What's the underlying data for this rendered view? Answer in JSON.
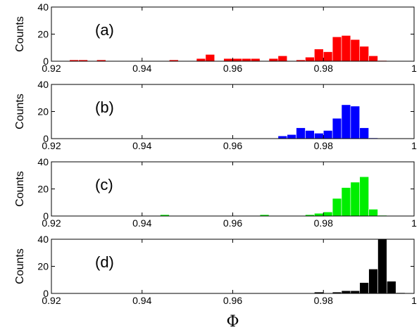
{
  "chart_data": [
    {
      "type": "bar",
      "panel_label": "(a)",
      "color": "#ff0000",
      "ylabel": "Counts",
      "xlim": [
        0.92,
        1.0
      ],
      "ylim": [
        0,
        40
      ],
      "xticks": [
        "0.92",
        "0.94",
        "0.96",
        "0.98",
        "1"
      ],
      "yticks": [
        "0",
        "20",
        "40"
      ],
      "bin_width": 0.002,
      "bin_centers": [
        0.925,
        0.927,
        0.931,
        0.947,
        0.953,
        0.955,
        0.959,
        0.961,
        0.963,
        0.965,
        0.969,
        0.971,
        0.975,
        0.977,
        0.979,
        0.981,
        0.983,
        0.985,
        0.987,
        0.989,
        0.991,
        0.993
      ],
      "counts": [
        1,
        1,
        1,
        1,
        2,
        5,
        2,
        2,
        2,
        2,
        2,
        4,
        1,
        3,
        9,
        7,
        18,
        19,
        16,
        11,
        4,
        0
      ]
    },
    {
      "type": "bar",
      "panel_label": "(b)",
      "color": "#0000ff",
      "ylabel": "Counts",
      "xlim": [
        0.92,
        1.0
      ],
      "ylim": [
        0,
        40
      ],
      "xticks": [
        "0.92",
        "0.94",
        "0.96",
        "0.98",
        "1"
      ],
      "yticks": [
        "0",
        "20",
        "40"
      ],
      "bin_width": 0.002,
      "bin_centers": [
        0.971,
        0.973,
        0.975,
        0.977,
        0.979,
        0.981,
        0.983,
        0.985,
        0.987,
        0.989,
        0.991
      ],
      "counts": [
        2,
        3,
        8,
        6,
        4,
        6,
        15,
        25,
        24,
        8,
        0
      ]
    },
    {
      "type": "bar",
      "panel_label": "(c)",
      "color": "#00ee00",
      "ylabel": "Counts",
      "xlim": [
        0.92,
        1.0
      ],
      "ylim": [
        0,
        40
      ],
      "xticks": [
        "0.92",
        "0.94",
        "0.96",
        "0.98",
        "1"
      ],
      "yticks": [
        "0",
        "20",
        "40"
      ],
      "bin_width": 0.002,
      "bin_centers": [
        0.945,
        0.967,
        0.977,
        0.979,
        0.981,
        0.983,
        0.985,
        0.987,
        0.989,
        0.991,
        0.993
      ],
      "counts": [
        1,
        1,
        1,
        2,
        3,
        13,
        21,
        25,
        29,
        5,
        0
      ]
    },
    {
      "type": "bar",
      "panel_label": "(d)",
      "color": "#000000",
      "ylabel": "Counts",
      "xlabel": "Φ",
      "xlim": [
        0.92,
        1.0
      ],
      "ylim": [
        0,
        40
      ],
      "xticks": [
        "0.92",
        "0.94",
        "0.96",
        "0.98",
        "1"
      ],
      "yticks": [
        "0",
        "20",
        "40"
      ],
      "bin_width": 0.002,
      "bin_centers": [
        0.979,
        0.983,
        0.985,
        0.987,
        0.989,
        0.991,
        0.993,
        0.995,
        0.997
      ],
      "counts": [
        1,
        1,
        2,
        2,
        8,
        18,
        40,
        9,
        0
      ]
    }
  ]
}
